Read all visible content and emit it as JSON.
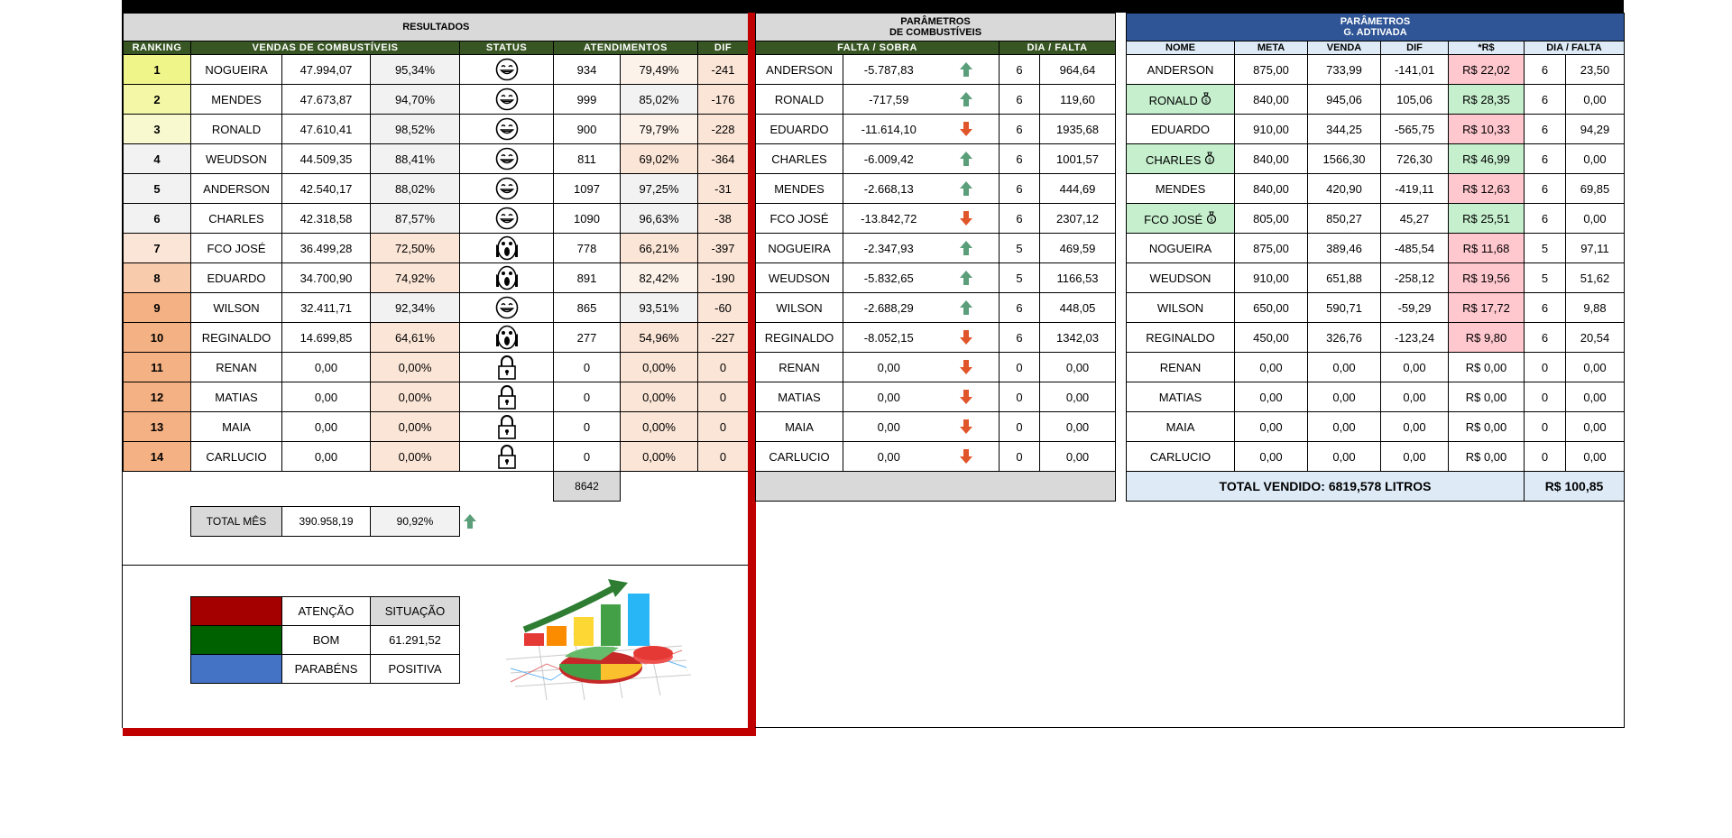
{
  "results": {
    "title": "RESULTADOS",
    "headers": {
      "ranking": "RANKING",
      "vendas": "VENDAS DE COMBUSTÍVEIS",
      "status": "STATUS",
      "atendimentos": "ATENDIMENTOS",
      "dif": "DIF"
    },
    "rows": [
      {
        "rank": "1",
        "name": "NOGUEIRA",
        "vendas": "47.994,07",
        "pct": "95,34%",
        "status": "happy",
        "atend": "934",
        "atend_pct": "79,49%",
        "dif": "-241"
      },
      {
        "rank": "2",
        "name": "MENDES",
        "vendas": "47.673,87",
        "pct": "94,70%",
        "status": "happy",
        "atend": "999",
        "atend_pct": "85,02%",
        "dif": "-176"
      },
      {
        "rank": "3",
        "name": "RONALD",
        "vendas": "47.610,41",
        "pct": "98,52%",
        "status": "happy",
        "atend": "900",
        "atend_pct": "79,79%",
        "dif": "-228"
      },
      {
        "rank": "4",
        "name": "WEUDSON",
        "vendas": "44.509,35",
        "pct": "88,41%",
        "status": "happy",
        "atend": "811",
        "atend_pct": "69,02%",
        "dif": "-364"
      },
      {
        "rank": "5",
        "name": "ANDERSON",
        "vendas": "42.540,17",
        "pct": "88,02%",
        "status": "happy",
        "atend": "1097",
        "atend_pct": "97,25%",
        "dif": "-31"
      },
      {
        "rank": "6",
        "name": "CHARLES",
        "vendas": "42.318,58",
        "pct": "87,57%",
        "status": "happy",
        "atend": "1090",
        "atend_pct": "96,63%",
        "dif": "-38"
      },
      {
        "rank": "7",
        "name": "FCO JOSÉ",
        "vendas": "36.499,28",
        "pct": "72,50%",
        "status": "scream",
        "atend": "778",
        "atend_pct": "66,21%",
        "dif": "-397"
      },
      {
        "rank": "8",
        "name": "EDUARDO",
        "vendas": "34.700,90",
        "pct": "74,92%",
        "status": "scream",
        "atend": "891",
        "atend_pct": "82,42%",
        "dif": "-190"
      },
      {
        "rank": "9",
        "name": "WILSON",
        "vendas": "32.411,71",
        "pct": "92,34%",
        "status": "happy",
        "atend": "865",
        "atend_pct": "93,51%",
        "dif": "-60"
      },
      {
        "rank": "10",
        "name": "REGINALDO",
        "vendas": "14.699,85",
        "pct": "64,61%",
        "status": "scream",
        "atend": "277",
        "atend_pct": "54,96%",
        "dif": "-227"
      },
      {
        "rank": "11",
        "name": "RENAN",
        "vendas": "0,00",
        "pct": "0,00%",
        "status": "lock",
        "atend": "0",
        "atend_pct": "0,00%",
        "dif": "0"
      },
      {
        "rank": "12",
        "name": "MATIAS",
        "vendas": "0,00",
        "pct": "0,00%",
        "status": "lock",
        "atend": "0",
        "atend_pct": "0,00%",
        "dif": "0"
      },
      {
        "rank": "13",
        "name": "MAIA",
        "vendas": "0,00",
        "pct": "0,00%",
        "status": "lock",
        "atend": "0",
        "atend_pct": "0,00%",
        "dif": "0"
      },
      {
        "rank": "14",
        "name": "CARLUCIO",
        "vendas": "0,00",
        "pct": "0,00%",
        "status": "lock",
        "atend": "0",
        "atend_pct": "0,00%",
        "dif": "0"
      }
    ],
    "atend_total": "8642",
    "total_label": "TOTAL MÊS",
    "total_value": "390.958,19",
    "total_pct": "90,92%",
    "legend": [
      {
        "color": "#a50000",
        "label": "ATENÇÃO",
        "value": "SITUAÇÃO"
      },
      {
        "color": "#006100",
        "label": "BOM",
        "value": "61.291,52"
      },
      {
        "color": "#4472c4",
        "label": "PARABÉNS",
        "value": "POSITIVA"
      }
    ]
  },
  "fuel": {
    "title_line1": "PARÂMETROS",
    "title_line2": "DE COMBUSTÍVEIS",
    "headers": {
      "falta": "FALTA / SOBRA",
      "dia": "DIA / FALTA"
    },
    "rows": [
      {
        "name": "ANDERSON",
        "value": "-5.787,83",
        "trend": "up",
        "days": "6",
        "per_day": "964,64"
      },
      {
        "name": "RONALD",
        "value": "-717,59",
        "trend": "up",
        "days": "6",
        "per_day": "119,60"
      },
      {
        "name": "EDUARDO",
        "value": "-11.614,10",
        "trend": "down",
        "days": "6",
        "per_day": "1935,68"
      },
      {
        "name": "CHARLES",
        "value": "-6.009,42",
        "trend": "up",
        "days": "6",
        "per_day": "1001,57"
      },
      {
        "name": "MENDES",
        "value": "-2.668,13",
        "trend": "up",
        "days": "6",
        "per_day": "444,69"
      },
      {
        "name": "FCO JOSÉ",
        "value": "-13.842,72",
        "trend": "down",
        "days": "6",
        "per_day": "2307,12"
      },
      {
        "name": "NOGUEIRA",
        "value": "-2.347,93",
        "trend": "up",
        "days": "5",
        "per_day": "469,59"
      },
      {
        "name": "WEUDSON",
        "value": "-5.832,65",
        "trend": "up",
        "days": "5",
        "per_day": "1166,53"
      },
      {
        "name": "WILSON",
        "value": "-2.688,29",
        "trend": "up",
        "days": "6",
        "per_day": "448,05"
      },
      {
        "name": "REGINALDO",
        "value": "-8.052,15",
        "trend": "down",
        "days": "6",
        "per_day": "1342,03"
      },
      {
        "name": "RENAN",
        "value": "0,00",
        "trend": "down",
        "days": "0",
        "per_day": "0,00"
      },
      {
        "name": "MATIAS",
        "value": "0,00",
        "trend": "down",
        "days": "0",
        "per_day": "0,00"
      },
      {
        "name": "MAIA",
        "value": "0,00",
        "trend": "down",
        "days": "0",
        "per_day": "0,00"
      },
      {
        "name": "CARLUCIO",
        "value": "0,00",
        "trend": "down",
        "days": "0",
        "per_day": "0,00"
      }
    ]
  },
  "gadt": {
    "title_line1": "PARÂMETROS",
    "title_line2": "G. ADTIVADA",
    "headers": {
      "nome": "NOME",
      "meta": "META",
      "venda": "VENDA",
      "dif": "DIF",
      "rs": "*R$",
      "dia": "DIA / FALTA"
    },
    "rows": [
      {
        "name": "ANDERSON",
        "bag": false,
        "meta": "875,00",
        "venda": "733,99",
        "dif": "-141,01",
        "rs": "R$ 22,02",
        "rs_state": "bad",
        "days": "6",
        "per_day": "23,50"
      },
      {
        "name": "RONALD",
        "bag": true,
        "meta": "840,00",
        "venda": "945,06",
        "dif": "105,06",
        "rs": "R$ 28,35",
        "rs_state": "good",
        "days": "6",
        "per_day": "0,00"
      },
      {
        "name": "EDUARDO",
        "bag": false,
        "meta": "910,00",
        "venda": "344,25",
        "dif": "-565,75",
        "rs": "R$ 10,33",
        "rs_state": "bad",
        "days": "6",
        "per_day": "94,29"
      },
      {
        "name": "CHARLES",
        "bag": true,
        "meta": "840,00",
        "venda": "1566,30",
        "dif": "726,30",
        "rs": "R$ 46,99",
        "rs_state": "good",
        "days": "6",
        "per_day": "0,00"
      },
      {
        "name": "MENDES",
        "bag": false,
        "meta": "840,00",
        "venda": "420,90",
        "dif": "-419,11",
        "rs": "R$ 12,63",
        "rs_state": "bad",
        "days": "6",
        "per_day": "69,85"
      },
      {
        "name": "FCO JOSÉ",
        "bag": true,
        "meta": "805,00",
        "venda": "850,27",
        "dif": "45,27",
        "rs": "R$ 25,51",
        "rs_state": "good",
        "days": "6",
        "per_day": "0,00"
      },
      {
        "name": "NOGUEIRA",
        "bag": false,
        "meta": "875,00",
        "venda": "389,46",
        "dif": "-485,54",
        "rs": "R$ 11,68",
        "rs_state": "bad",
        "days": "5",
        "per_day": "97,11"
      },
      {
        "name": "WEUDSON",
        "bag": false,
        "meta": "910,00",
        "venda": "651,88",
        "dif": "-258,12",
        "rs": "R$ 19,56",
        "rs_state": "bad",
        "days": "5",
        "per_day": "51,62"
      },
      {
        "name": "WILSON",
        "bag": false,
        "meta": "650,00",
        "venda": "590,71",
        "dif": "-59,29",
        "rs": "R$ 17,72",
        "rs_state": "bad",
        "days": "6",
        "per_day": "9,88"
      },
      {
        "name": "REGINALDO",
        "bag": false,
        "meta": "450,00",
        "venda": "326,76",
        "dif": "-123,24",
        "rs": "R$ 9,80",
        "rs_state": "bad",
        "days": "6",
        "per_day": "20,54"
      },
      {
        "name": "RENAN",
        "bag": false,
        "meta": "0,00",
        "venda": "0,00",
        "dif": "0,00",
        "rs": "R$ 0,00",
        "rs_state": "none",
        "days": "0",
        "per_day": "0,00"
      },
      {
        "name": "MATIAS",
        "bag": false,
        "meta": "0,00",
        "venda": "0,00",
        "dif": "0,00",
        "rs": "R$ 0,00",
        "rs_state": "none",
        "days": "0",
        "per_day": "0,00"
      },
      {
        "name": "MAIA",
        "bag": false,
        "meta": "0,00",
        "venda": "0,00",
        "dif": "0,00",
        "rs": "R$ 0,00",
        "rs_state": "none",
        "days": "0",
        "per_day": "0,00"
      },
      {
        "name": "CARLUCIO",
        "bag": false,
        "meta": "0,00",
        "venda": "0,00",
        "dif": "0,00",
        "rs": "R$ 0,00",
        "rs_state": "none",
        "days": "0",
        "per_day": "0,00"
      }
    ],
    "total_label": "TOTAL VENDIDO: 6819,578 LITROS",
    "total_rs": "R$ 100,85"
  },
  "colors": {
    "rank": [
      "#f0f58a",
      "#f3f7a6",
      "#f8f9cf",
      "#f2f2f2",
      "#f2f2f2",
      "#f2f2f2",
      "#fbe5d6",
      "#f8cbad",
      "#f4b183",
      "#f4b183",
      "#f4b183",
      "#f4b183",
      "#f4b183",
      "#f4b183"
    ],
    "rs_good": "#c6efce",
    "rs_bad": "#ffc7ce",
    "arrow_up": "#5a9e7a",
    "arrow_down": "#e0552a"
  },
  "icons": {
    "happy": "smile-icon",
    "scream": "scream-icon",
    "lock": "lock-icon",
    "bag": "money-bag-icon",
    "trend_up": "arrow-up-icon",
    "trend_down": "arrow-down-icon",
    "chart": "chart-illustration"
  }
}
